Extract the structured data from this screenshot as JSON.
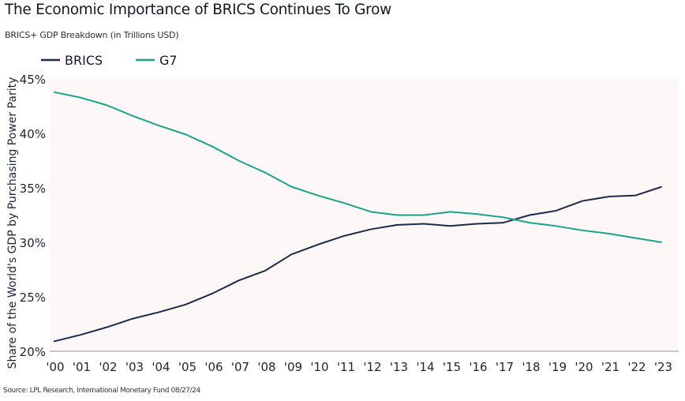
{
  "title": "The Economic Importance of BRICS Continues To Grow",
  "subtitle": "BRICS+ GDP Breakdown (in Trillions USD)",
  "source": "Source: LPL Research, International Monetary Fund 08/27/24",
  "chart_data": {
    "type": "line",
    "title": "The Economic Importance of BRICS Continues To Grow",
    "subtitle": "BRICS+ GDP Breakdown (in Trillions USD)",
    "xlabel": "",
    "ylabel": "Share of the World's GDP by Purchasing Power Parity",
    "categories": [
      "'00",
      "'01",
      "'02",
      "'03",
      "'04",
      "'05",
      "'06",
      "'07",
      "'08",
      "'09",
      "'10",
      "'11",
      "'12",
      "'13",
      "'14",
      "'15",
      "'16",
      "'17",
      "'18",
      "'19",
      "'20",
      "'21",
      "'22",
      "'23"
    ],
    "yticks": [
      "20%",
      "25%",
      "30%",
      "35%",
      "40%",
      "45%"
    ],
    "ylim": [
      20,
      45
    ],
    "grid": false,
    "legend": "top-left",
    "series": [
      {
        "name": "BRICS",
        "color": "#1b2a4e",
        "values": [
          20.9,
          21.5,
          22.2,
          23.0,
          23.6,
          24.3,
          25.3,
          26.5,
          27.4,
          28.9,
          29.8,
          30.6,
          31.2,
          31.6,
          31.7,
          31.5,
          31.7,
          31.8,
          32.5,
          32.9,
          33.8,
          34.2,
          34.3,
          35.1
        ]
      },
      {
        "name": "G7",
        "color": "#17a589",
        "values": [
          43.8,
          43.3,
          42.6,
          41.6,
          40.7,
          39.9,
          38.8,
          37.5,
          36.4,
          35.1,
          34.3,
          33.6,
          32.8,
          32.5,
          32.5,
          32.8,
          32.6,
          32.3,
          31.8,
          31.5,
          31.1,
          30.8,
          30.4,
          30.0
        ]
      }
    ],
    "plot_background": "#fdf8f7"
  }
}
